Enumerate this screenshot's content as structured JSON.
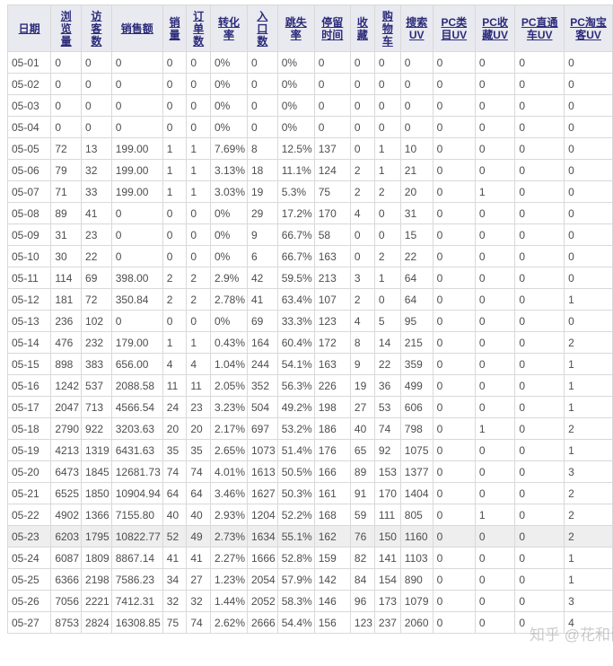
{
  "page": {
    "watermark": "知乎 @花和尚",
    "colors": {
      "header_bg": "#e9e9f0",
      "header_text": "#2b2b7a",
      "border": "#d9d9d9",
      "cell_text": "#4d4d4d",
      "highlight_row_bg": "#eeeeee",
      "watermark_text": "#8c8c8c"
    }
  },
  "table": {
    "highlighted_date": "05-23",
    "columns": [
      {
        "id": "date",
        "label": "日期",
        "width": 49
      },
      {
        "id": "pageviews",
        "label": "浏\n览\n量",
        "width": 33
      },
      {
        "id": "visitors",
        "label": "访\n客\n数",
        "width": 32
      },
      {
        "id": "sales-amount",
        "label": "销售额",
        "width": 56
      },
      {
        "id": "units-sold",
        "label": "销\n量",
        "width": 27
      },
      {
        "id": "order-count",
        "label": "订\n单\n数",
        "width": 27
      },
      {
        "id": "conversion",
        "label": "转化\n率",
        "width": 40
      },
      {
        "id": "entries",
        "label": "入\n口\n数",
        "width": 30
      },
      {
        "id": "bounce-rate",
        "label": "跳失\n率",
        "width": 39
      },
      {
        "id": "dwell-time",
        "label": "停留\n时间",
        "width": 41
      },
      {
        "id": "favorites",
        "label": "收\n藏",
        "width": 26
      },
      {
        "id": "cart",
        "label": "购\n物\n车",
        "width": 29
      },
      {
        "id": "search-uv",
        "label": "搜索\nUV",
        "width": 36
      },
      {
        "id": "pc-category-uv",
        "label": "PC类\n目UV",
        "width": 49
      },
      {
        "id": "pc-favorite-uv",
        "label": "PC收\n藏UV",
        "width": 46
      },
      {
        "id": "pc-ztc-uv",
        "label": "PC直通\n车UV",
        "width": 57
      },
      {
        "id": "pc-taoke-uv",
        "label": "PC淘宝\n客UV",
        "width": 56
      }
    ],
    "rows": [
      [
        "05-01",
        "0",
        "0",
        "0",
        "0",
        "0",
        "0%",
        "0",
        "0%",
        "0",
        "0",
        "0",
        "0",
        "0",
        "0",
        "0",
        "0"
      ],
      [
        "05-02",
        "0",
        "0",
        "0",
        "0",
        "0",
        "0%",
        "0",
        "0%",
        "0",
        "0",
        "0",
        "0",
        "0",
        "0",
        "0",
        "0"
      ],
      [
        "05-03",
        "0",
        "0",
        "0",
        "0",
        "0",
        "0%",
        "0",
        "0%",
        "0",
        "0",
        "0",
        "0",
        "0",
        "0",
        "0",
        "0"
      ],
      [
        "05-04",
        "0",
        "0",
        "0",
        "0",
        "0",
        "0%",
        "0",
        "0%",
        "0",
        "0",
        "0",
        "0",
        "0",
        "0",
        "0",
        "0"
      ],
      [
        "05-05",
        "72",
        "13",
        "199.00",
        "1",
        "1",
        "7.69%",
        "8",
        "12.5%",
        "137",
        "0",
        "1",
        "10",
        "0",
        "0",
        "0",
        "0"
      ],
      [
        "05-06",
        "79",
        "32",
        "199.00",
        "1",
        "1",
        "3.13%",
        "18",
        "11.1%",
        "124",
        "2",
        "1",
        "21",
        "0",
        "0",
        "0",
        "0"
      ],
      [
        "05-07",
        "71",
        "33",
        "199.00",
        "1",
        "1",
        "3.03%",
        "19",
        "5.3%",
        "75",
        "2",
        "2",
        "20",
        "0",
        "1",
        "0",
        "0"
      ],
      [
        "05-08",
        "89",
        "41",
        "0",
        "0",
        "0",
        "0%",
        "29",
        "17.2%",
        "170",
        "4",
        "0",
        "31",
        "0",
        "0",
        "0",
        "0"
      ],
      [
        "05-09",
        "31",
        "23",
        "0",
        "0",
        "0",
        "0%",
        "9",
        "66.7%",
        "58",
        "0",
        "0",
        "15",
        "0",
        "0",
        "0",
        "0"
      ],
      [
        "05-10",
        "30",
        "22",
        "0",
        "0",
        "0",
        "0%",
        "6",
        "66.7%",
        "163",
        "0",
        "2",
        "22",
        "0",
        "0",
        "0",
        "0"
      ],
      [
        "05-11",
        "114",
        "69",
        "398.00",
        "2",
        "2",
        "2.9%",
        "42",
        "59.5%",
        "213",
        "3",
        "1",
        "64",
        "0",
        "0",
        "0",
        "0"
      ],
      [
        "05-12",
        "181",
        "72",
        "350.84",
        "2",
        "2",
        "2.78%",
        "41",
        "63.4%",
        "107",
        "2",
        "0",
        "64",
        "0",
        "0",
        "0",
        "1"
      ],
      [
        "05-13",
        "236",
        "102",
        "0",
        "0",
        "0",
        "0%",
        "69",
        "33.3%",
        "123",
        "4",
        "5",
        "95",
        "0",
        "0",
        "0",
        "0"
      ],
      [
        "05-14",
        "476",
        "232",
        "179.00",
        "1",
        "1",
        "0.43%",
        "164",
        "60.4%",
        "172",
        "8",
        "14",
        "215",
        "0",
        "0",
        "0",
        "2"
      ],
      [
        "05-15",
        "898",
        "383",
        "656.00",
        "4",
        "4",
        "1.04%",
        "244",
        "54.1%",
        "163",
        "9",
        "22",
        "359",
        "0",
        "0",
        "0",
        "1"
      ],
      [
        "05-16",
        "1242",
        "537",
        "2088.58",
        "11",
        "11",
        "2.05%",
        "352",
        "56.3%",
        "226",
        "19",
        "36",
        "499",
        "0",
        "0",
        "0",
        "1"
      ],
      [
        "05-17",
        "2047",
        "713",
        "4566.54",
        "24",
        "23",
        "3.23%",
        "504",
        "49.2%",
        "198",
        "27",
        "53",
        "606",
        "0",
        "0",
        "0",
        "1"
      ],
      [
        "05-18",
        "2790",
        "922",
        "3203.63",
        "20",
        "20",
        "2.17%",
        "697",
        "53.2%",
        "186",
        "40",
        "74",
        "798",
        "0",
        "1",
        "0",
        "2"
      ],
      [
        "05-19",
        "4213",
        "1319",
        "6431.63",
        "35",
        "35",
        "2.65%",
        "1073",
        "51.4%",
        "176",
        "65",
        "92",
        "1075",
        "0",
        "0",
        "0",
        "1"
      ],
      [
        "05-20",
        "6473",
        "1845",
        "12681.73",
        "74",
        "74",
        "4.01%",
        "1613",
        "50.5%",
        "166",
        "89",
        "153",
        "1377",
        "0",
        "0",
        "0",
        "3"
      ],
      [
        "05-21",
        "6525",
        "1850",
        "10904.94",
        "64",
        "64",
        "3.46%",
        "1627",
        "50.3%",
        "161",
        "91",
        "170",
        "1404",
        "0",
        "0",
        "0",
        "2"
      ],
      [
        "05-22",
        "4902",
        "1366",
        "7155.80",
        "40",
        "40",
        "2.93%",
        "1204",
        "52.2%",
        "168",
        "59",
        "111",
        "805",
        "0",
        "1",
        "0",
        "2"
      ],
      [
        "05-23",
        "6203",
        "1795",
        "10822.77",
        "52",
        "49",
        "2.73%",
        "1634",
        "55.1%",
        "162",
        "76",
        "150",
        "1160",
        "0",
        "0",
        "0",
        "2"
      ],
      [
        "05-24",
        "6087",
        "1809",
        "8867.14",
        "41",
        "41",
        "2.27%",
        "1666",
        "52.8%",
        "159",
        "82",
        "141",
        "1103",
        "0",
        "0",
        "0",
        "1"
      ],
      [
        "05-25",
        "6366",
        "2198",
        "7586.23",
        "34",
        "27",
        "1.23%",
        "2054",
        "57.9%",
        "142",
        "84",
        "154",
        "890",
        "0",
        "0",
        "0",
        "1"
      ],
      [
        "05-26",
        "7056",
        "2221",
        "7412.31",
        "32",
        "32",
        "1.44%",
        "2052",
        "58.3%",
        "146",
        "96",
        "173",
        "1079",
        "0",
        "0",
        "0",
        "3"
      ],
      [
        "05-27",
        "8753",
        "2824",
        "16308.85",
        "75",
        "74",
        "2.62%",
        "2666",
        "54.4%",
        "156",
        "123",
        "237",
        "2060",
        "0",
        "0",
        "0",
        "4"
      ]
    ]
  }
}
